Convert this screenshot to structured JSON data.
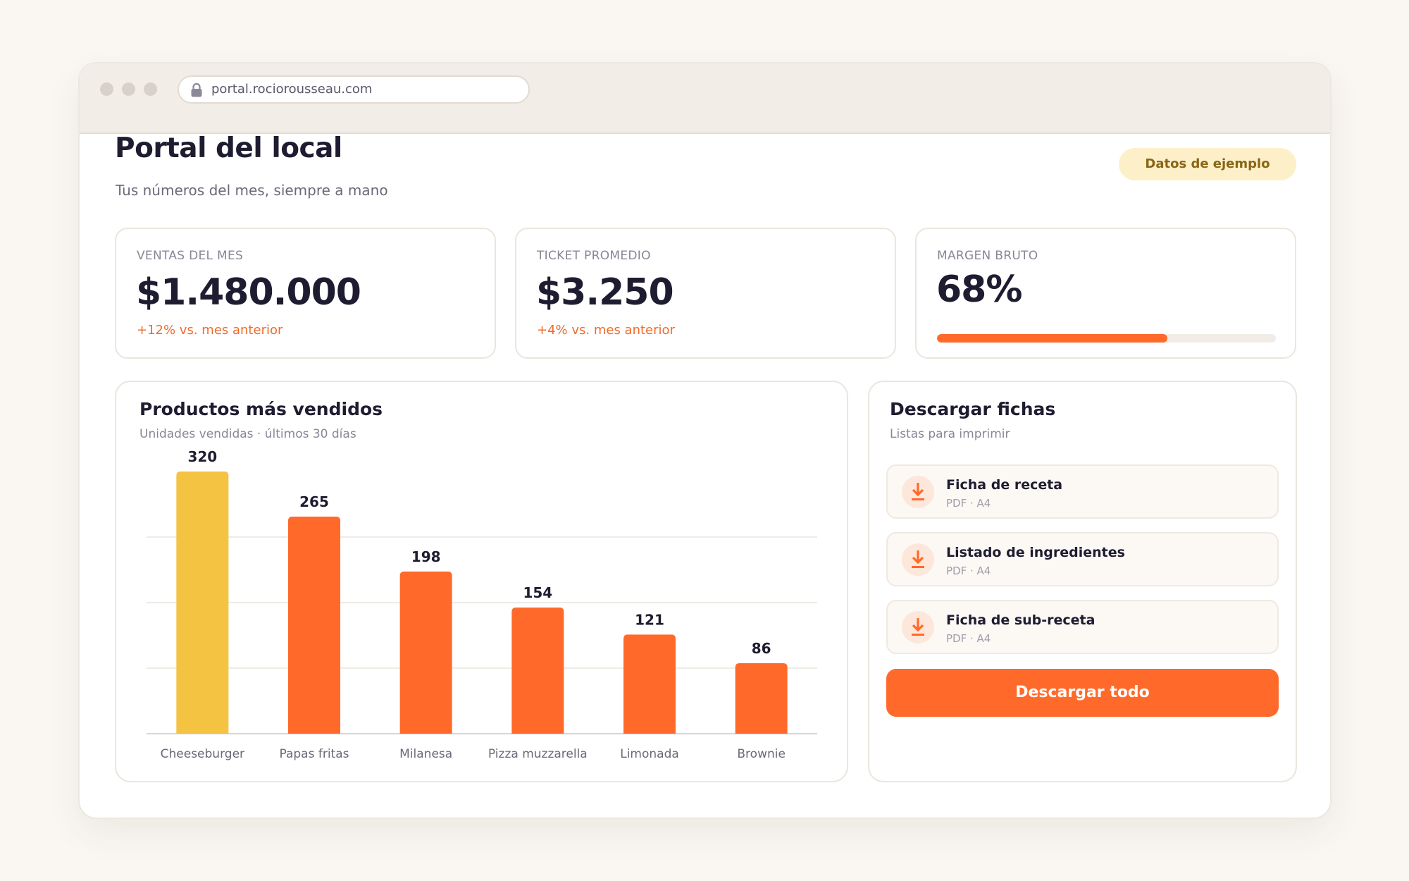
{
  "browser": {
    "url": "portal.rociorousseau.com"
  },
  "header": {
    "title": "Portal del local",
    "subtitle": "Tus números del mes, siempre a mano",
    "badge": "Datos de ejemplo"
  },
  "kpis": {
    "sales": {
      "label": "VENTAS DEL MES",
      "value": "$1.480.000",
      "delta": "+12% vs. mes anterior"
    },
    "ticket": {
      "label": "TICKET PROMEDIO",
      "value": "$3.250",
      "delta": "+4% vs. mes anterior"
    },
    "margin": {
      "label": "MARGEN BRUTO",
      "value": "68%",
      "progress": 0.68
    }
  },
  "chart_panel": {
    "title": "Productos más vendidos",
    "subtitle": "Unidades vendidas · últimos 30 días"
  },
  "chart_data": {
    "type": "bar",
    "categories": [
      "Cheeseburger",
      "Papas fritas",
      "Milanesa",
      "Pizza muzzarella",
      "Limonada",
      "Brownie"
    ],
    "values": [
      320,
      265,
      198,
      154,
      121,
      86
    ],
    "ylim": [
      0,
      320
    ],
    "grid": true,
    "colors": {
      "highlight": "#f4c341",
      "default": "#ff6a2b"
    }
  },
  "downloads": {
    "title": "Descargar fichas",
    "subtitle": "Listas para imprimir",
    "items": [
      {
        "title": "Ficha de receta",
        "meta": "PDF · A4"
      },
      {
        "title": "Listado de ingredientes",
        "meta": "PDF · A4"
      },
      {
        "title": "Ficha de sub-receta",
        "meta": "PDF · A4"
      }
    ],
    "download_all": "Descargar todo"
  },
  "colors": {
    "accent": "#ff6a2b",
    "highlight": "#f4c341",
    "badge_bg": "#fdf0c9",
    "badge_text": "#8a6514"
  },
  "icons": {
    "lock": "lock-icon",
    "download": "download-icon"
  }
}
